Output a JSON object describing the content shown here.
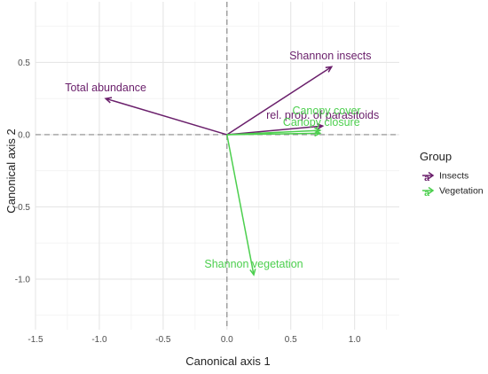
{
  "chart_data": {
    "type": "biplot-vectors",
    "xlabel": "Canonical axis 1",
    "ylabel": "Canonical axis 2",
    "xlim": [
      -1.5,
      1.35
    ],
    "ylim": [
      -1.35,
      0.92
    ],
    "x_ticks": [
      -1.5,
      -1.0,
      -0.5,
      0.0,
      0.5,
      1.0
    ],
    "x_tick_labels": [
      "-1.5",
      "-1.0",
      "-0.5",
      "0.0",
      "0.5",
      "1.0"
    ],
    "y_ticks": [
      -1.0,
      -0.5,
      0.0,
      0.5
    ],
    "y_tick_labels": [
      "-1.0",
      "-0.5",
      "0.0",
      "0.5"
    ],
    "grid": true,
    "reference_lines": {
      "x": 0,
      "y": 0
    },
    "legend": {
      "title": "Group",
      "position": "right",
      "key_glyph": "a",
      "entries": [
        {
          "label": "Insects",
          "group": "Insects"
        },
        {
          "label": "Vegetation",
          "group": "Vegetation"
        }
      ]
    },
    "colors": {
      "Insects": "#6a1f6b",
      "Vegetation": "#4ccf4e"
    },
    "vectors": [
      {
        "label": "Shannon insects",
        "group": "Insects",
        "x": 0.82,
        "y": 0.47,
        "label_x": 0.81,
        "label_y": 0.52
      },
      {
        "label": "Total abundance",
        "group": "Insects",
        "x": -0.95,
        "y": 0.25,
        "label_x": -0.95,
        "label_y": 0.3
      },
      {
        "label": "rel. prop. of parasitoids",
        "group": "Insects",
        "x": 0.75,
        "y": 0.06,
        "label_x": 0.75,
        "label_y": 0.11
      },
      {
        "label": "Canopy cover",
        "group": "Vegetation",
        "x": 0.73,
        "y": 0.03,
        "label_x": 0.78,
        "label_y": 0.14
      },
      {
        "label": "Canopy closure",
        "group": "Vegetation",
        "x": 0.73,
        "y": 0.01,
        "label_x": 0.74,
        "label_y": 0.06
      },
      {
        "label": "Shannon vegetation",
        "group": "Vegetation",
        "x": 0.21,
        "y": -0.97,
        "label_x": 0.21,
        "label_y": -0.92
      }
    ]
  }
}
